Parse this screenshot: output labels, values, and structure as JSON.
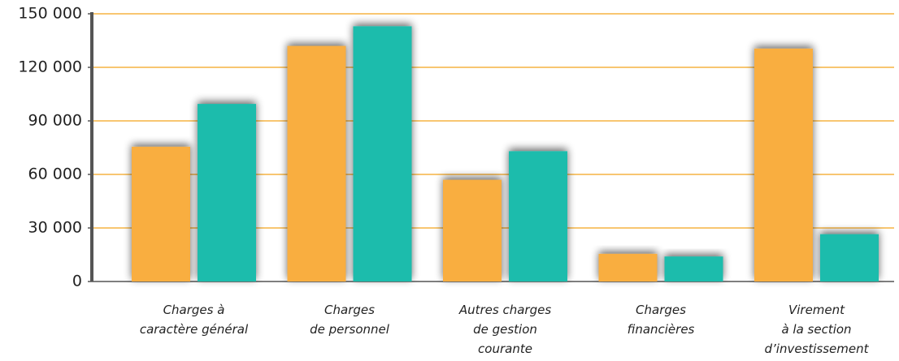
{
  "chart_data": {
    "type": "bar",
    "categories": [
      [
        "Charges à",
        "caractère général"
      ],
      [
        "Charges",
        "de personnel"
      ],
      [
        "Autres charges",
        "de gestion",
        "courante"
      ],
      [
        "Charges",
        "financières"
      ],
      [
        "Virement",
        "à la section",
        "d’investissement"
      ]
    ],
    "series": [
      {
        "color": "#f9ae3f",
        "values": [
          75500,
          132000,
          57000,
          15500,
          130500
        ]
      },
      {
        "color": "#1abcac",
        "values": [
          99500,
          143000,
          73000,
          14000,
          26500
        ]
      }
    ],
    "ylim": [
      0,
      150000
    ],
    "yticks": [
      0,
      {
        "value": 30000,
        "label": "30 000"
      },
      {
        "value": 60000,
        "label": "60 000"
      },
      {
        "value": 90000,
        "label": "90 000"
      },
      {
        "value": 120000,
        "label": "120 000"
      },
      {
        "value": 150000,
        "label": "150 000"
      }
    ],
    "grid": true,
    "grid_color": "#f5b342"
  }
}
